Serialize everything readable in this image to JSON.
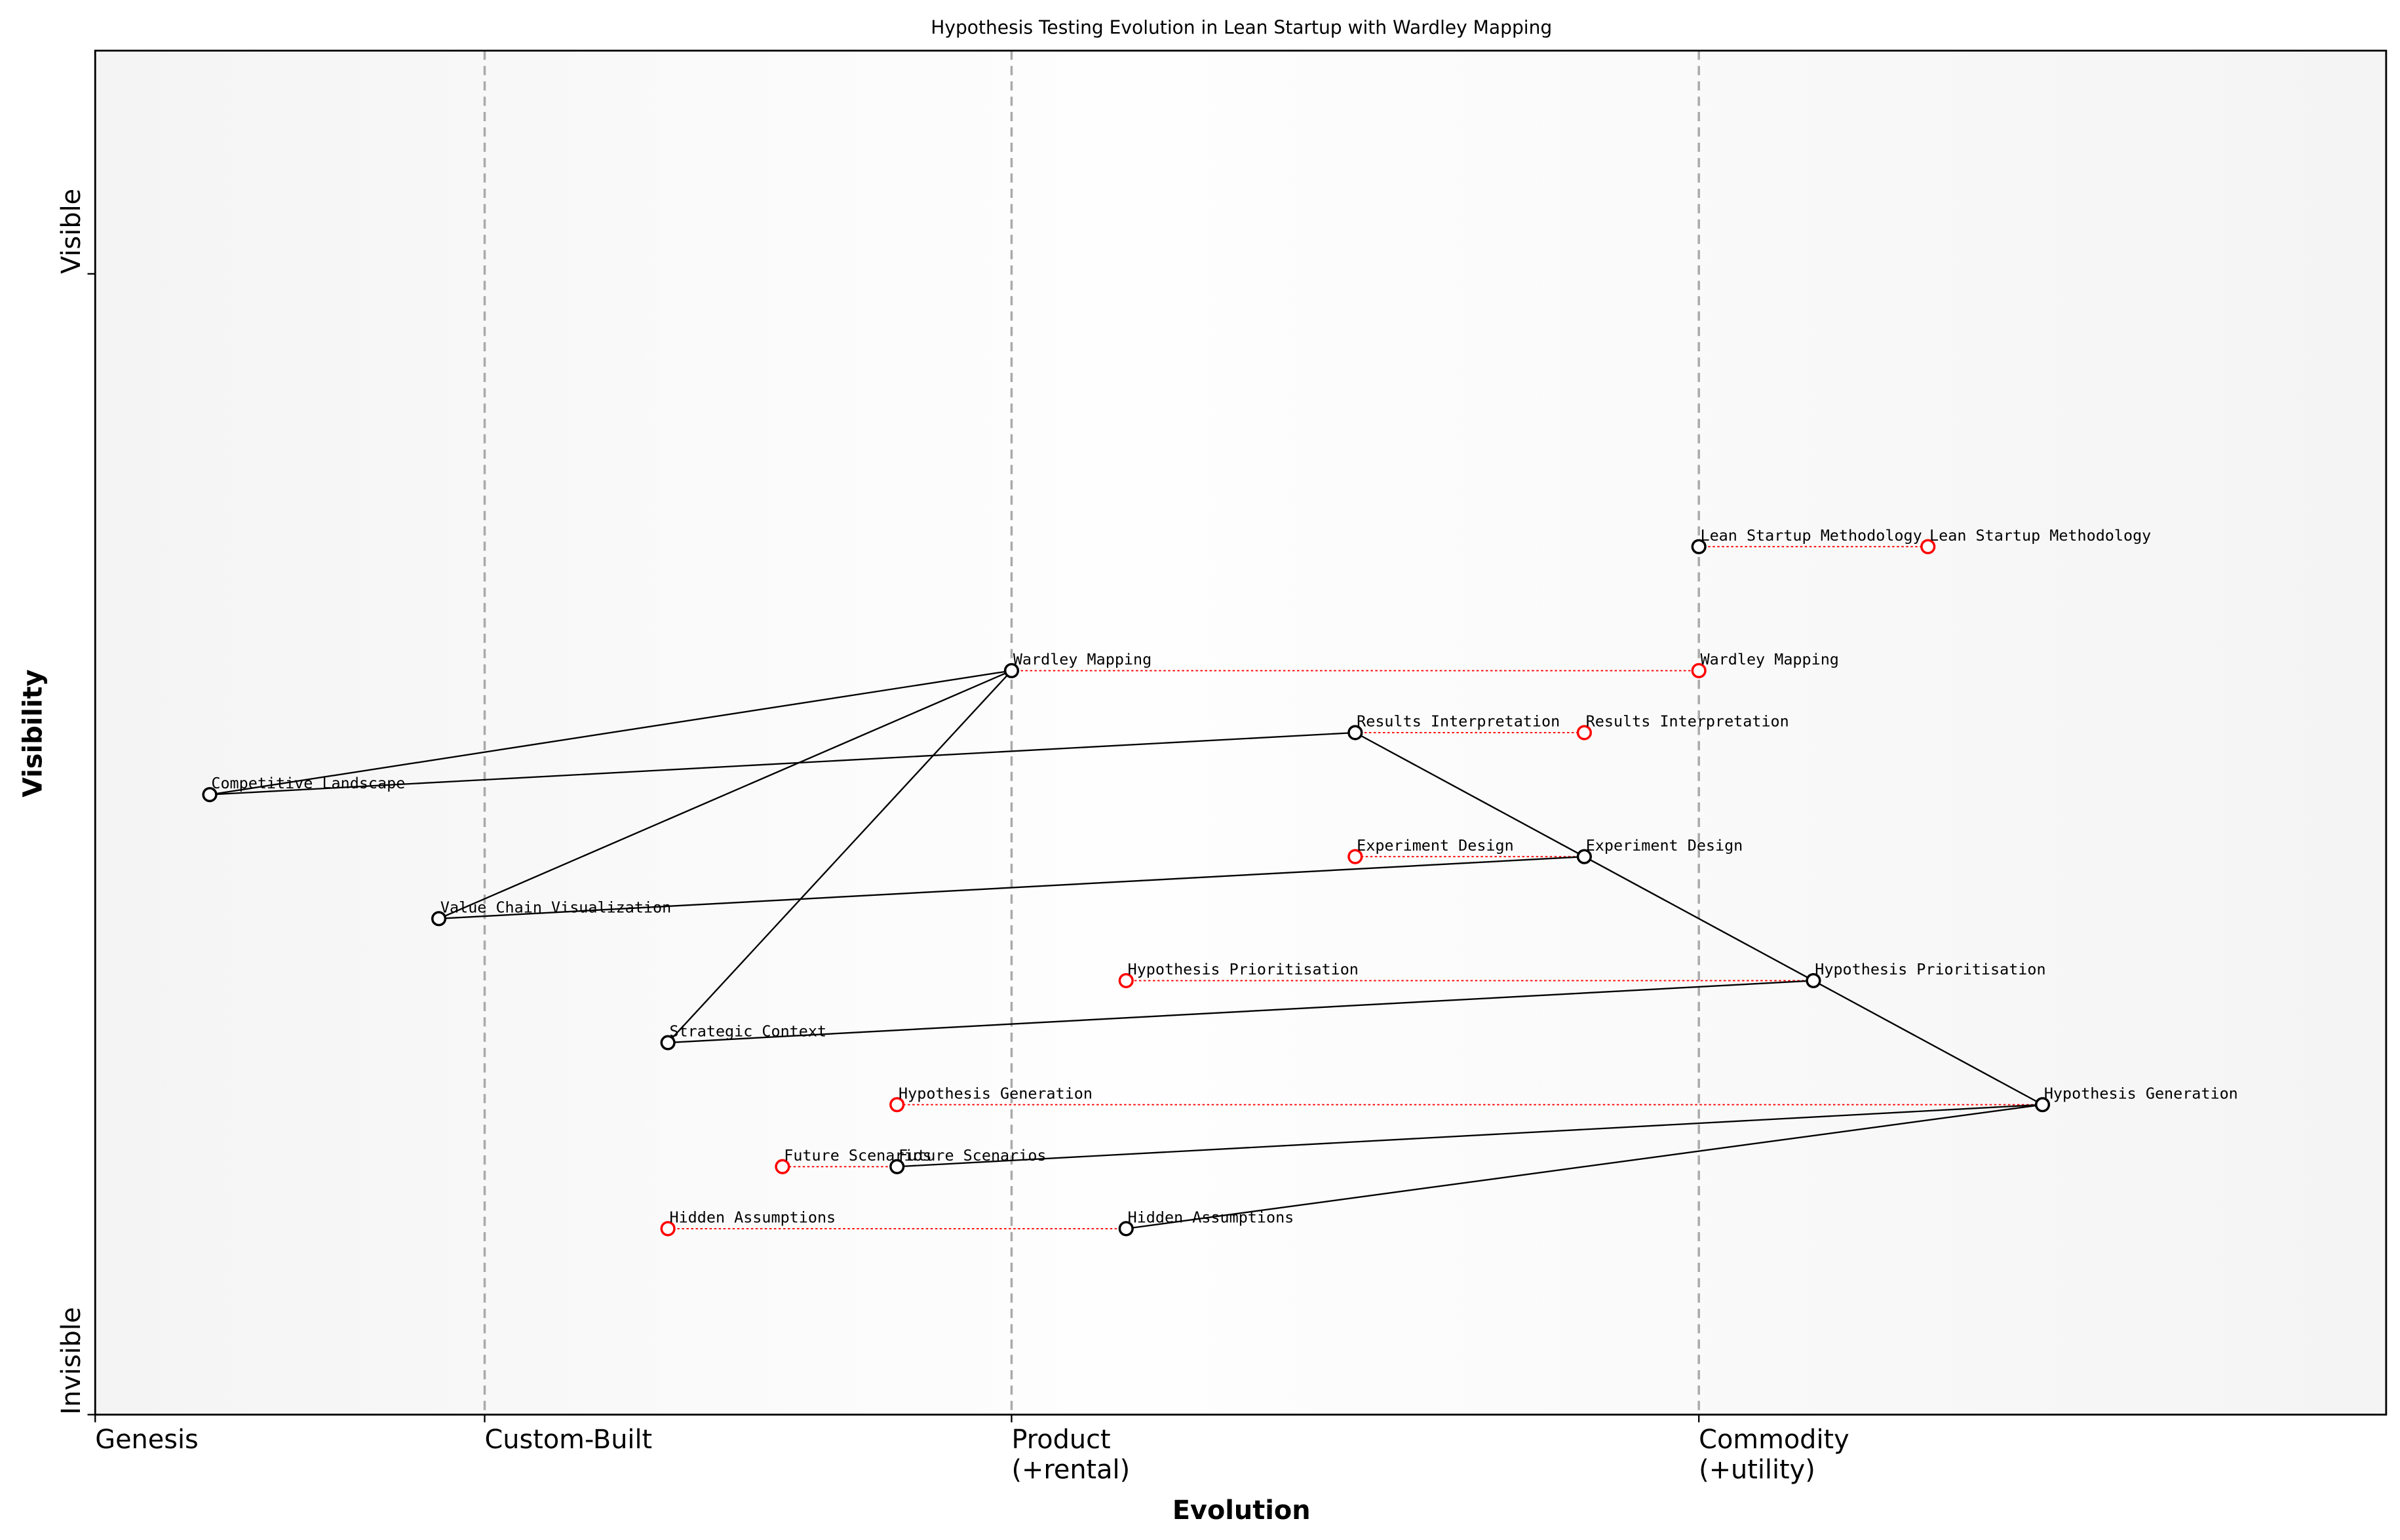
{
  "chart_data": {
    "type": "wardley",
    "title": "Hypothesis Testing Evolution in Lean Startup with Wardley Mapping",
    "x_label": "Evolution",
    "y_label": "Visibility",
    "xlim": [
      0,
      1
    ],
    "ylim": [
      0,
      1.1
    ],
    "xticks": [
      {
        "value": 0,
        "label": "Genesis"
      },
      {
        "value": 0.17,
        "label": "Custom-Built"
      },
      {
        "value": 0.4,
        "label": "Product\n(+rental)"
      },
      {
        "value": 0.7,
        "label": "Commodity\n(+utility)"
      }
    ],
    "yticks": [
      {
        "value": 0,
        "label": "Invisible"
      },
      {
        "value": 0.92,
        "label": "Visible"
      }
    ],
    "current_color": "#000000",
    "future_color": "#ff0000",
    "components": [
      {
        "name": "Lean Startup Methodology",
        "evolution": 0.7,
        "visibility": 0.7,
        "future_evolution": 0.8
      },
      {
        "name": "Wardley Mapping",
        "evolution": 0.4,
        "visibility": 0.6,
        "future_evolution": 0.7
      },
      {
        "name": "Results Interpretation",
        "evolution": 0.55,
        "visibility": 0.55,
        "future_evolution": 0.65
      },
      {
        "name": "Competitive Landscape",
        "evolution": 0.05,
        "visibility": 0.5
      },
      {
        "name": "Experiment Design",
        "evolution": 0.65,
        "visibility": 0.45,
        "future_evolution": 0.55
      },
      {
        "name": "Value Chain Visualization",
        "evolution": 0.15,
        "visibility": 0.4
      },
      {
        "name": "Hypothesis Prioritisation",
        "evolution": 0.75,
        "visibility": 0.35,
        "future_evolution": 0.45
      },
      {
        "name": "Strategic Context",
        "evolution": 0.25,
        "visibility": 0.3
      },
      {
        "name": "Hypothesis Generation",
        "evolution": 0.85,
        "visibility": 0.25,
        "future_evolution": 0.35
      },
      {
        "name": "Future Scenarios",
        "evolution": 0.35,
        "visibility": 0.2,
        "future_evolution": 0.3
      },
      {
        "name": "Hidden Assumptions",
        "evolution": 0.45,
        "visibility": 0.15,
        "future_evolution": 0.25
      }
    ],
    "links": [
      [
        1,
        3
      ],
      [
        3,
        2
      ],
      [
        1,
        5
      ],
      [
        1,
        7
      ],
      [
        5,
        4
      ],
      [
        2,
        4
      ],
      [
        4,
        6
      ],
      [
        6,
        7
      ],
      [
        6,
        8
      ],
      [
        8,
        9
      ],
      [
        8,
        10
      ]
    ]
  }
}
